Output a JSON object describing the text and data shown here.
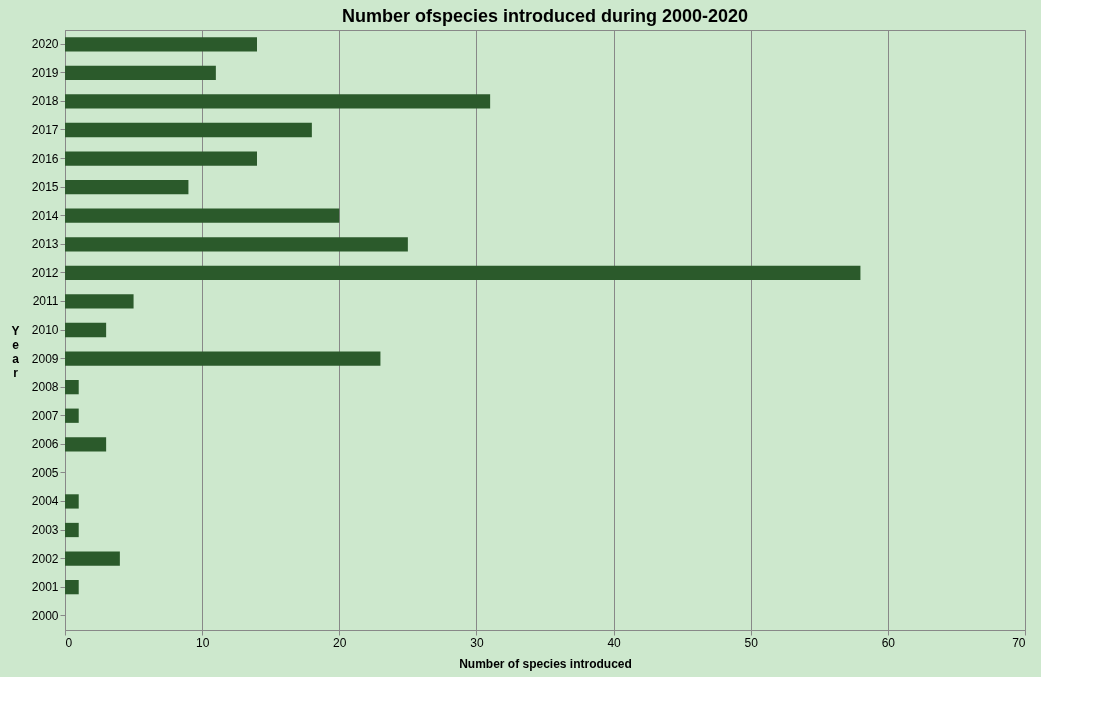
{
  "chart_data": {
    "type": "bar",
    "orientation": "horizontal",
    "title": "Number ofspecies introduced during 2000-2020",
    "xlabel": "Number of species introduced",
    "ylabel": "Year",
    "categories": [
      "2020",
      "2019",
      "2018",
      "2017",
      "2016",
      "2015",
      "2014",
      "2013",
      "2012",
      "2011",
      "2010",
      "2009",
      "2008",
      "2007",
      "2006",
      "2005",
      "2004",
      "2003",
      "2002",
      "2001",
      "2000"
    ],
    "values": [
      14,
      11,
      31,
      18,
      14,
      9,
      20,
      25,
      58,
      5,
      3,
      23,
      1,
      1,
      3,
      0,
      1,
      1,
      4,
      1,
      0
    ],
    "color": "#2b5a2b",
    "xlim": [
      0,
      70
    ],
    "xticks": [
      0,
      10,
      20,
      30,
      40,
      50,
      60,
      70
    ],
    "grid": "x"
  }
}
